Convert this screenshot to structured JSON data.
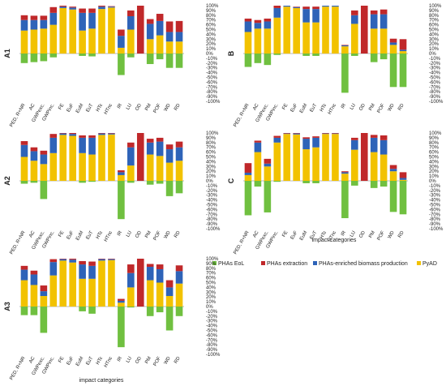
{
  "figure": {
    "categories": [
      "PED, R+NR",
      "AC",
      "GWPexc.",
      "GWPinc.",
      "FE",
      "EuF",
      "EuM",
      "EuT",
      "HTc",
      "HTnc",
      "IR",
      "LU",
      "OD",
      "PM",
      "POF",
      "WD",
      "RD"
    ],
    "y_ticks": [
      "100%",
      "90%",
      "80%",
      "70%",
      "60%",
      "50%",
      "40%",
      "30%",
      "20%",
      "10%",
      "0%",
      "-10%",
      "-20%",
      "-30%",
      "-40%",
      "-50%",
      "-60%",
      "-70%",
      "-80%",
      "-90%",
      "-100%"
    ],
    "xlabel": "impact categories",
    "legend": [
      {
        "name": "PHAs EoL",
        "color": "#70c040"
      },
      {
        "name": "PHAs extraction",
        "color": "#c0282a"
      },
      {
        "name": "PHAs-enriched biomass production",
        "color": "#2e63b8"
      },
      {
        "name": "PyAD",
        "color": "#f2c200"
      }
    ]
  },
  "chart_data": [
    {
      "type": "bar",
      "panel_label": "A1",
      "ylim": [
        -100,
        100
      ],
      "categories": [
        "PED, R+NR",
        "AC",
        "GWPexc.",
        "GWPinc.",
        "FE",
        "EuF",
        "EuM",
        "EuT",
        "HTc",
        "HTnc",
        "IR",
        "LU",
        "OD",
        "PM",
        "POF",
        "WD",
        "RD"
      ],
      "series": [
        {
          "name": "PyAD",
          "values": [
            48,
            50,
            52,
            60,
            95,
            92,
            48,
            52,
            93,
            96,
            12,
            50,
            0,
            30,
            38,
            25,
            25
          ]
        },
        {
          "name": "PHAs-enriched biomass production",
          "values": [
            22,
            20,
            18,
            25,
            3,
            4,
            37,
            33,
            5,
            2,
            25,
            28,
            0,
            32,
            30,
            20,
            20
          ]
        },
        {
          "name": "PHAs extraction",
          "values": [
            10,
            9,
            9,
            12,
            2,
            2,
            9,
            9,
            2,
            1,
            13,
            12,
            100,
            10,
            15,
            22,
            23
          ]
        },
        {
          "name": "PHAs EoL",
          "values": [
            -20,
            -18,
            -16,
            -8,
            0,
            0,
            -5,
            -6,
            0,
            0,
            -45,
            -8,
            0,
            -22,
            -12,
            -30,
            -30
          ]
        }
      ]
    },
    {
      "type": "bar",
      "panel_label": "B",
      "ylim": [
        -100,
        100
      ],
      "categories": [
        "PED, R+NR",
        "AC",
        "GWPexc.",
        "GWPinc.",
        "FE",
        "EuF",
        "EuM",
        "EuT",
        "HTc",
        "HTnc",
        "IR",
        "LU",
        "OD",
        "PM",
        "POF",
        "WD",
        "RD"
      ],
      "series": [
        {
          "name": "PyAD",
          "values": [
            45,
            52,
            52,
            75,
            98,
            95,
            65,
            65,
            98,
            98,
            15,
            62,
            0,
            52,
            52,
            18,
            5
          ]
        },
        {
          "name": "PHAs-enriched biomass production",
          "values": [
            22,
            12,
            15,
            20,
            2,
            2,
            28,
            28,
            2,
            2,
            2,
            18,
            0,
            30,
            30,
            5,
            3
          ]
        },
        {
          "name": "PHAs extraction",
          "values": [
            6,
            6,
            6,
            5,
            0,
            1,
            5,
            5,
            0,
            0,
            1,
            10,
            100,
            8,
            10,
            8,
            22
          ]
        },
        {
          "name": "PHAs EoL",
          "values": [
            -28,
            -20,
            -24,
            -3,
            0,
            0,
            -5,
            -5,
            0,
            0,
            -82,
            -5,
            0,
            -18,
            -12,
            -70,
            -70
          ]
        }
      ]
    },
    {
      "type": "bar",
      "panel_label": "A2",
      "ylim": [
        -100,
        100
      ],
      "categories": [
        "PED, R+NR",
        "AC",
        "GWPexc.",
        "GWPinc.",
        "FE",
        "EuF",
        "EuM",
        "EuT",
        "HTc",
        "HTnc",
        "IR",
        "LU",
        "OD",
        "PM",
        "POF",
        "WD",
        "RD"
      ],
      "series": [
        {
          "name": "PyAD",
          "values": [
            50,
            42,
            35,
            58,
            96,
            94,
            58,
            55,
            96,
            97,
            12,
            32,
            0,
            55,
            52,
            38,
            42
          ]
        },
        {
          "name": "PHAs-enriched biomass production",
          "values": [
            25,
            20,
            20,
            32,
            3,
            4,
            32,
            35,
            3,
            2,
            6,
            38,
            0,
            25,
            30,
            28,
            28
          ]
        },
        {
          "name": "PHAs extraction",
          "values": [
            8,
            8,
            8,
            8,
            1,
            2,
            5,
            5,
            1,
            1,
            4,
            10,
            100,
            8,
            8,
            10,
            12
          ]
        },
        {
          "name": "PHAs EoL",
          "values": [
            -6,
            -4,
            -38,
            0,
            0,
            0,
            -4,
            -2,
            0,
            0,
            -80,
            -4,
            0,
            -8,
            -6,
            -32,
            -26
          ]
        }
      ]
    },
    {
      "type": "bar",
      "panel_label": "C",
      "ylim": [
        -100,
        100
      ],
      "categories": [
        "PED, R+NR",
        "AC",
        "GWPexc.",
        "GWPinc.",
        "FE",
        "EuF",
        "EuM",
        "EuT",
        "HTc",
        "HTnc",
        "IR",
        "LU",
        "OD",
        "PM",
        "POF",
        "WD",
        "RD"
      ],
      "series": [
        {
          "name": "PyAD",
          "values": [
            12,
            60,
            30,
            80,
            98,
            97,
            66,
            70,
            98,
            98,
            15,
            65,
            0,
            60,
            55,
            20,
            2
          ]
        },
        {
          "name": "PHAs-enriched biomass production",
          "values": [
            5,
            20,
            6,
            10,
            1,
            2,
            22,
            20,
            1,
            1,
            3,
            20,
            0,
            30,
            30,
            5,
            4
          ]
        },
        {
          "name": "PHAs extraction",
          "values": [
            20,
            4,
            10,
            4,
            1,
            1,
            3,
            3,
            1,
            1,
            2,
            5,
            100,
            6,
            10,
            8,
            12
          ]
        },
        {
          "name": "PHAs EoL",
          "values": [
            -72,
            -12,
            -66,
            -2,
            0,
            0,
            -5,
            -5,
            0,
            0,
            -78,
            -10,
            0,
            -15,
            -12,
            -65,
            -70
          ]
        }
      ]
    },
    {
      "type": "bar",
      "panel_label": "A3",
      "ylim": [
        -100,
        100
      ],
      "categories": [
        "PED, R+NR",
        "AC",
        "GWPexc.",
        "GWPinc.",
        "FE",
        "EuF",
        "EuM",
        "EuT",
        "HTc",
        "HTnc",
        "IR",
        "LU",
        "OD",
        "PM",
        "POF",
        "WD",
        "RD"
      ],
      "series": [
        {
          "name": "PyAD",
          "values": [
            55,
            45,
            22,
            65,
            96,
            92,
            58,
            58,
            96,
            97,
            8,
            40,
            0,
            55,
            50,
            22,
            48
          ]
        },
        {
          "name": "PHAs-enriched biomass production",
          "values": [
            22,
            22,
            10,
            28,
            3,
            6,
            30,
            27,
            3,
            2,
            4,
            30,
            0,
            28,
            28,
            18,
            26
          ]
        },
        {
          "name": "PHAs extraction",
          "values": [
            8,
            8,
            12,
            6,
            1,
            2,
            7,
            9,
            1,
            1,
            4,
            18,
            100,
            6,
            10,
            15,
            12
          ]
        },
        {
          "name": "PHAs EoL",
          "values": [
            -18,
            -18,
            -55,
            0,
            0,
            0,
            -10,
            -15,
            0,
            0,
            -85,
            -2,
            0,
            -20,
            -12,
            -50,
            -20
          ]
        }
      ]
    }
  ]
}
